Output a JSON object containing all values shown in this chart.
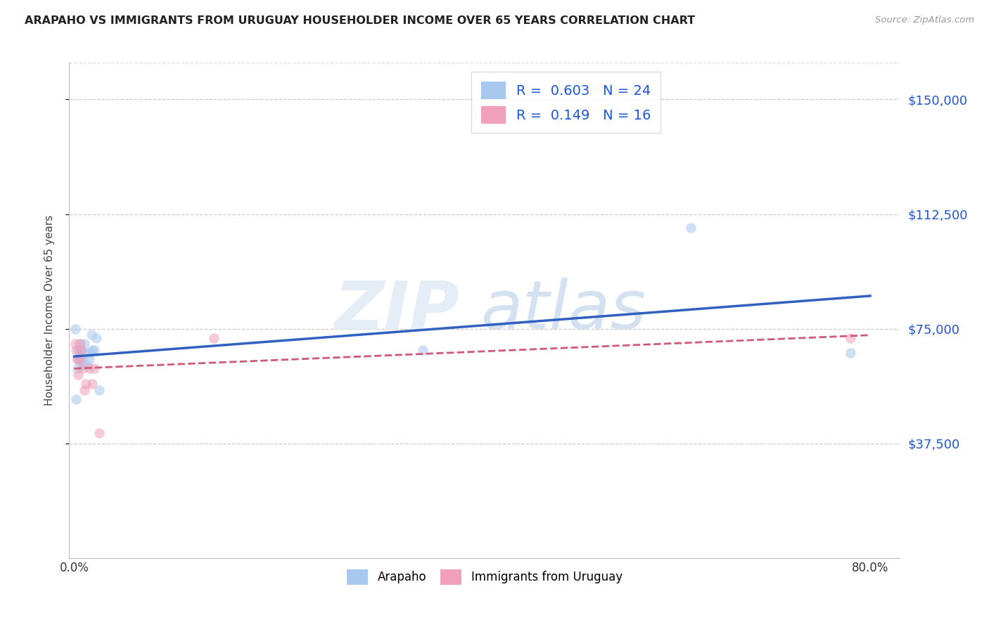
{
  "title": "ARAPAHO VS IMMIGRANTS FROM URUGUAY HOUSEHOLDER INCOME OVER 65 YEARS CORRELATION CHART",
  "source": "Source: ZipAtlas.com",
  "ylabel": "Householder Income Over 65 years",
  "ytick_labels": [
    "$37,500",
    "$75,000",
    "$112,500",
    "$150,000"
  ],
  "ytick_values": [
    37500,
    75000,
    112500,
    150000
  ],
  "ymin": 0,
  "ymax": 162000,
  "xmin": -0.005,
  "xmax": 0.83,
  "legend_r1_prefix": "R = ",
  "legend_r1_val": "0.603",
  "legend_r1_n": "N = ",
  "legend_r1_nval": "24",
  "legend_r2_prefix": "R = ",
  "legend_r2_val": "0.149",
  "legend_r2_n": "N = ",
  "legend_r2_nval": "16",
  "blue_color": "#A8C8F0",
  "pink_color": "#F0A0B8",
  "blue_line_color": "#3060C0",
  "pink_line_color": "#D05878",
  "legend_text_color": "#1a56d6",
  "ytick_color": "#2255CC",
  "marker_size": 110,
  "alpha": 0.55,
  "arapaho_x": [
    0.001,
    0.002,
    0.003,
    0.003,
    0.004,
    0.005,
    0.005,
    0.006,
    0.007,
    0.008,
    0.009,
    0.01,
    0.011,
    0.013,
    0.015,
    0.016,
    0.017,
    0.018,
    0.02,
    0.022,
    0.025,
    0.35,
    0.62,
    0.78
  ],
  "arapaho_y": [
    75000,
    52000,
    65000,
    62000,
    68000,
    70000,
    67000,
    65000,
    68000,
    63000,
    65000,
    70000,
    67000,
    63000,
    65000,
    67000,
    73000,
    68000,
    68000,
    72000,
    55000,
    68000,
    108000,
    67000
  ],
  "uruguay_x": [
    0.001,
    0.002,
    0.003,
    0.004,
    0.005,
    0.006,
    0.007,
    0.008,
    0.01,
    0.012,
    0.015,
    0.018,
    0.02,
    0.025,
    0.14,
    0.78
  ],
  "uruguay_y": [
    70000,
    68000,
    65000,
    60000,
    65000,
    70000,
    68000,
    62000,
    55000,
    57000,
    62000,
    57000,
    62000,
    41000,
    72000,
    72000
  ]
}
